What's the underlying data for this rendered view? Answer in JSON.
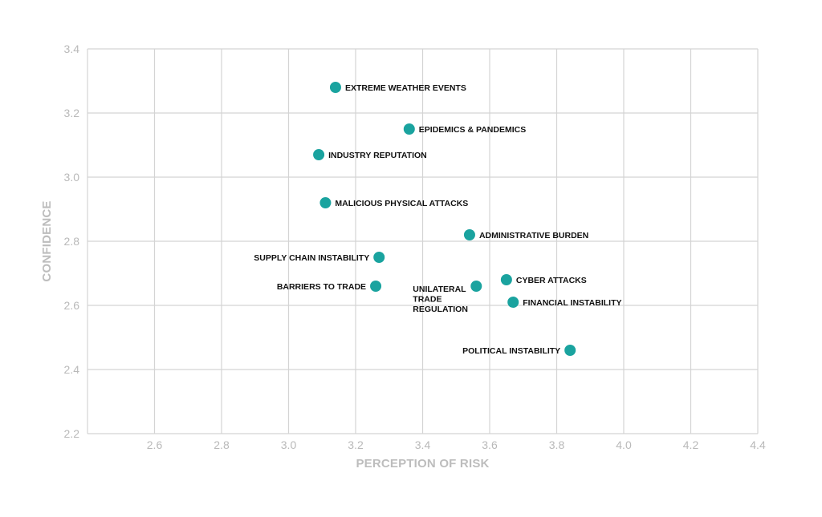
{
  "chart_data": {
    "type": "scatter",
    "xlabel": "PERCEPTION OF RISK",
    "ylabel": "CONFIDENCE",
    "xlim": [
      2.4,
      4.4
    ],
    "ylim": [
      2.2,
      3.4
    ],
    "x_ticks": [
      "2.6",
      "2.8",
      "3.0",
      "3.2",
      "3.4",
      "3.6",
      "3.8",
      "4.0",
      "4.2",
      "4.4"
    ],
    "y_ticks": [
      "2.2",
      "2.4",
      "2.6",
      "2.8",
      "3.0",
      "3.2",
      "3.4"
    ],
    "grid": true,
    "point_color": "#1aa39f",
    "points": [
      {
        "label": "EXTREME WEATHER EVENTS",
        "x": 3.14,
        "y": 3.28
      },
      {
        "label": "EPIDEMICS & PANDEMICS",
        "x": 3.36,
        "y": 3.15
      },
      {
        "label": "INDUSTRY REPUTATION",
        "x": 3.09,
        "y": 3.07
      },
      {
        "label": "MALICIOUS PHYSICAL ATTACKS",
        "x": 3.11,
        "y": 2.92
      },
      {
        "label": "ADMINISTRATIVE BURDEN",
        "x": 3.54,
        "y": 2.82
      },
      {
        "label": "SUPPLY CHAIN INSTABILITY",
        "x": 3.27,
        "y": 2.75
      },
      {
        "label": "BARRIERS TO TRADE",
        "x": 3.26,
        "y": 2.66
      },
      {
        "label": "UNILATERAL TRADE REGULATION",
        "x": 3.56,
        "y": 2.66
      },
      {
        "label": "CYBER ATTACKS",
        "x": 3.65,
        "y": 2.68
      },
      {
        "label": "FINANCIAL INSTABILITY",
        "x": 3.67,
        "y": 2.61
      },
      {
        "label": "POLITICAL INSTABILITY",
        "x": 3.84,
        "y": 2.46
      }
    ]
  }
}
